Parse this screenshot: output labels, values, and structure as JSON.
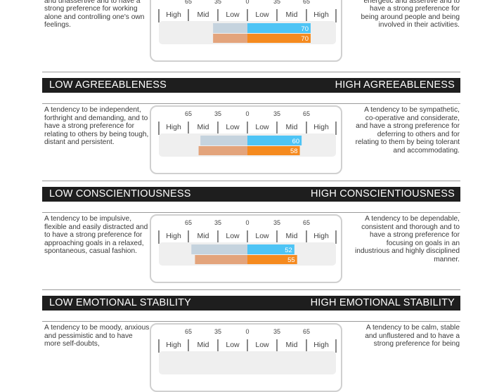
{
  "colors": {
    "header_bg": "#1e1e1e",
    "bar_track": "#efefef",
    "self_left": "#c5d3de",
    "self_right": "#4ec4f5",
    "other_left": "#e3a47c",
    "other_right": "#f58a1f"
  },
  "scale": {
    "left_numbers": [
      "65",
      "35",
      "0"
    ],
    "right_numbers": [
      "35",
      "65"
    ],
    "levels_left": [
      "High",
      "Mid",
      "Low"
    ],
    "levels_right": [
      "Low",
      "Mid",
      "High"
    ]
  },
  "sections": [
    {
      "low_title": "",
      "high_title": "",
      "low_desc": "A tendency to be quiet, reserved and unassertive and to have a strong preference for working alone and controlling one's own feelings.",
      "high_desc": "A tendency to be sociable, energetic and assertive and to have a strong preference for being around people and being involved in their activities.",
      "self_score": 70,
      "self_left_extent": 38,
      "other_score": 70,
      "other_left_extent": 38
    },
    {
      "low_title": "LOW AGREEABLENESS",
      "high_title": "HIGH AGREEABLENESS",
      "low_desc": "A tendency to be independent, forthright and demanding, and to have a strong preference for relating to others by being tough, distant and persistent.",
      "high_desc": "A tendency to be sympathetic, co-operative and considerate, and have a strong preference for deferring to others and for relating to them by being tolerant and accommodating.",
      "self_score": 60,
      "self_left_extent": 52,
      "other_score": 58,
      "other_left_extent": 54
    },
    {
      "low_title": "LOW CONSCIENTIOUSNESS",
      "high_title": "HIGH CONSCIENTIOUSNESS",
      "low_desc": "A tendency to be impulsive, flexible and easily distracted and to have a strong preference for approaching goals in a relaxed, spontaneous, casual fashion.",
      "high_desc": "A tendency to be dependable, consistent and thorough and to have a strong preference for focusing on goals in an industrious and highly disciplined manner.",
      "self_score": 52,
      "self_left_extent": 62,
      "other_score": 55,
      "other_left_extent": 58
    },
    {
      "low_title": "LOW EMOTIONAL STABILITY",
      "high_title": "HIGH EMOTIONAL STABILITY",
      "low_desc": "A tendency to be moody, anxious and pessimistic and to have more self-doubts,",
      "high_desc": "A tendency to be calm, stable and unflustered and to have a strong preference for being"
    }
  ]
}
